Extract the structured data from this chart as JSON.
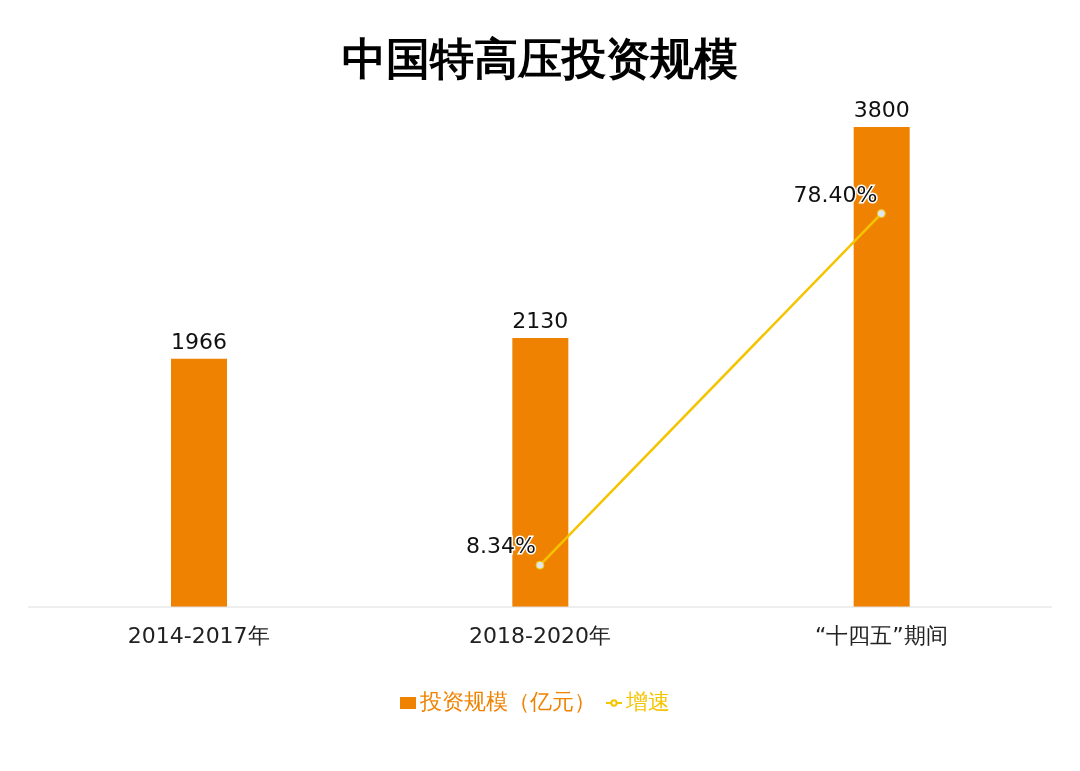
{
  "chart_data": {
    "type": "bar",
    "title": "中国特高压投资规模",
    "categories": [
      "2014-2017年",
      "2018-2020年",
      "“十四五”期间"
    ],
    "series": [
      {
        "name": "投资规模（亿元）",
        "color": "#ef8200",
        "values": [
          1966,
          2130,
          3800
        ]
      },
      {
        "name": "增速",
        "type": "line",
        "axis": "y2",
        "color": "#f5c400",
        "values": [
          null,
          8.34,
          78.4
        ],
        "value_labels": [
          null,
          "8.34%",
          "78.40%"
        ]
      }
    ],
    "data_labels": true,
    "legend": "bottom",
    "marker": "circle",
    "grid": false
  }
}
